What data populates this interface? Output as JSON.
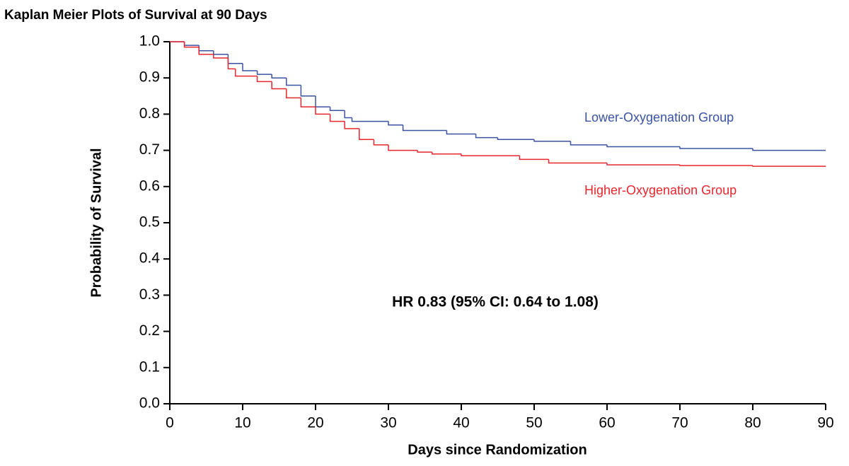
{
  "chart_data": {
    "type": "step",
    "title": "Kaplan Meier Plots of Survival at 90 Days",
    "x_label": "Days since Randomization",
    "y_label": "Probability of Survival",
    "annotation": "HR 0.83 (95% CI: 0.64 to 1.08)",
    "xlim": [
      0,
      90
    ],
    "ylim": [
      0,
      1
    ],
    "xticks": [
      0,
      10,
      20,
      30,
      40,
      50,
      60,
      70,
      80,
      90
    ],
    "yticks": [
      {
        "value": 0,
        "label": "0.0"
      },
      0.1,
      0.2,
      0.3,
      0.4,
      0.5,
      0.6,
      0.7,
      0.8,
      0.9,
      {
        "value": 1,
        "label": "1.0"
      }
    ],
    "series": [
      {
        "name": "Lower-Oxygenation Group",
        "color": "#3a52a3",
        "x": [
          0,
          2,
          4,
          6,
          8,
          10,
          12,
          14,
          16,
          18,
          20,
          22,
          24,
          25,
          30,
          32,
          38,
          42,
          45,
          50,
          55,
          60,
          70,
          80,
          90
        ],
        "values": [
          1.0,
          0.99,
          0.975,
          0.965,
          0.94,
          0.92,
          0.91,
          0.9,
          0.88,
          0.85,
          0.82,
          0.81,
          0.79,
          0.78,
          0.77,
          0.755,
          0.745,
          0.735,
          0.73,
          0.725,
          0.715,
          0.71,
          0.705,
          0.7,
          0.7
        ]
      },
      {
        "name": "Higher-Oxygenation Group",
        "color": "#e8262e",
        "x": [
          0,
          2,
          4,
          6,
          8,
          9,
          12,
          14,
          16,
          18,
          20,
          22,
          24,
          26,
          28,
          30,
          34,
          36,
          40,
          48,
          52,
          60,
          70,
          80,
          90
        ],
        "values": [
          1.0,
          0.985,
          0.965,
          0.955,
          0.925,
          0.905,
          0.89,
          0.87,
          0.845,
          0.82,
          0.8,
          0.78,
          0.76,
          0.73,
          0.715,
          0.7,
          0.695,
          0.69,
          0.685,
          0.675,
          0.665,
          0.66,
          0.658,
          0.656,
          0.655
        ]
      }
    ]
  }
}
